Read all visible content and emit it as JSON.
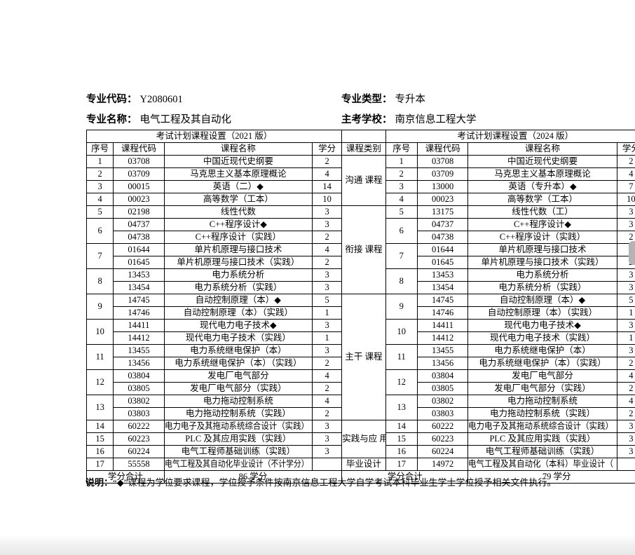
{
  "header": {
    "major_code": {
      "label": "专业代码：",
      "value": "Y2080601"
    },
    "major_type": {
      "label": "专业类型：",
      "value": "专升本"
    },
    "major_name": {
      "label": "专业名称：",
      "value": "电气工程及其自动化"
    },
    "host_school": {
      "label": "主考学校：",
      "value": "南京信息工程大学"
    }
  },
  "table": {
    "left_title": "考试计划课程设置（2021 版）",
    "right_title": "考试计划课程设置（2024 版）",
    "headers": {
      "seq": "序号",
      "code": "课程代码",
      "name": "课程名称",
      "credit": "学分",
      "category": "课程类别"
    },
    "categories": [
      {
        "label": "沟通\n课程",
        "rowspan": 4
      },
      {
        "label": "衔接\n课程",
        "rowspan": 7
      },
      {
        "label": "主干\n课程",
        "rowspan": 10
      },
      {
        "label": "实践与应\n用课程",
        "rowspan": 3
      },
      {
        "label": "毕业设计",
        "rowspan": 1
      }
    ],
    "rows": [
      {
        "s": "1",
        "sp": 1,
        "cat": 0,
        "cL": "03708",
        "nL": "中国近现代史纲要",
        "crL": "2",
        "cR": "03708",
        "nR": "中国近现代史纲要",
        "crR": "2"
      },
      {
        "s": "2",
        "sp": 1,
        "cL": "03709",
        "nL": "马克思主义基本原理概论",
        "crL": "4",
        "cR": "03709",
        "nR": "马克思主义基本原理概论",
        "crR": "4"
      },
      {
        "s": "3",
        "sp": 1,
        "cL": "00015",
        "nL": "英语（二）◆",
        "crL": "14",
        "cR": "13000",
        "nR": "英语（专升本）◆",
        "crR": "7"
      },
      {
        "s": "4",
        "sp": 1,
        "cL": "00023",
        "nL": "高等数学（工本）",
        "crL": "10",
        "cR": "00023",
        "nR": "高等数学（工本）",
        "crR": "10"
      },
      {
        "s": "5",
        "sp": 1,
        "cat": 1,
        "cL": "02198",
        "nL": "线性代数",
        "crL": "3",
        "cR": "13175",
        "nR": "线性代数（工）",
        "crR": "3"
      },
      {
        "s": "6",
        "sp": 2,
        "cL": "04737",
        "nL": "C++程序设计◆",
        "crL": "3",
        "cR": "04737",
        "nR": "C++程序设计◆",
        "crR": "3"
      },
      {
        "s": null,
        "cL": "04738",
        "nL": "C++程序设计（实践）",
        "crL": "2",
        "cR": "04738",
        "nR": "C++程序设计（实践）",
        "crR": "2"
      },
      {
        "s": "7",
        "sp": 2,
        "cL": "01644",
        "nL": "单片机原理与接口技术",
        "crL": "4",
        "cR": "01644",
        "nR": "单片机原理与接口技术",
        "crR": "4"
      },
      {
        "s": null,
        "cL": "01645",
        "nL": "单片机原理与接口技术（实践）",
        "crL": "2",
        "cR": "01645",
        "nR": "单片机原理与接口技术（实践）",
        "crR": "2"
      },
      {
        "s": "8",
        "sp": 2,
        "cL": "13453",
        "nL": "电力系统分析",
        "crL": "3",
        "cR": "13453",
        "nR": "电力系统分析",
        "crR": "3"
      },
      {
        "s": null,
        "cL": "13454",
        "nL": "电力系统分析（实践）",
        "crL": "3",
        "cR": "13454",
        "nR": "电力系统分析（实践）",
        "crR": "3"
      },
      {
        "s": "9",
        "sp": 2,
        "cat": 2,
        "cL": "14745",
        "nL": "自动控制原理（本）◆",
        "crL": "5",
        "cR": "14745",
        "nR": "自动控制原理（本）◆",
        "crR": "5"
      },
      {
        "s": null,
        "cL": "14746",
        "nL": "自动控制原理（本）（实践）",
        "crL": "1",
        "cR": "14746",
        "nR": "自动控制原理（本）（实践）",
        "crR": "1"
      },
      {
        "s": "10",
        "sp": 2,
        "cL": "14411",
        "nL": "现代电力电子技术◆",
        "crL": "3",
        "cR": "14411",
        "nR": "现代电力电子技术◆",
        "crR": "3"
      },
      {
        "s": null,
        "cL": "14412",
        "nL": "现代电力电子技术（实践）",
        "crL": "1",
        "cR": "14412",
        "nR": "现代电力电子技术（实践）",
        "crR": "1"
      },
      {
        "s": "11",
        "sp": 2,
        "cL": "13455",
        "nL": "电力系统继电保护（本）",
        "crL": "3",
        "cR": "13455",
        "nR": "电力系统继电保护（本）",
        "crR": "3"
      },
      {
        "s": null,
        "cL": "13456",
        "nL": "电力系统继电保护（本）（实践）",
        "crL": "2",
        "cR": "13456",
        "nR": "电力系统继电保护（本）（实践）",
        "crR": "2"
      },
      {
        "s": "12",
        "sp": 2,
        "cL": "03804",
        "nL": "发电厂电气部分",
        "crL": "4",
        "cR": "03804",
        "nR": "发电厂电气部分",
        "crR": "4"
      },
      {
        "s": null,
        "cL": "03805",
        "nL": "发电厂电气部分（实践）",
        "crL": "2",
        "cR": "03805",
        "nR": "发电厂电气部分（实践）",
        "crR": "2"
      },
      {
        "s": "13",
        "sp": 2,
        "cL": "03802",
        "nL": "电力拖动控制系统",
        "crL": "4",
        "cR": "03802",
        "nR": "电力拖动控制系统",
        "crR": "4"
      },
      {
        "s": null,
        "cL": "03803",
        "nL": "电力拖动控制系统（实践）",
        "crL": "2",
        "cR": "03803",
        "nR": "电力拖动控制系统（实践）",
        "crR": "2"
      },
      {
        "s": "14",
        "sp": 1,
        "cat": 3,
        "cL": "60222",
        "nL": "电力电子及其拖动系统综合设计（实践）",
        "crL": "3",
        "cR": "60222",
        "nR": "电力电子及其拖动系统综合设计（实践）",
        "crR": "3"
      },
      {
        "s": "15",
        "sp": 1,
        "cL": "60223",
        "nL": "PLC 及其应用实践（实践）",
        "crL": "3",
        "cR": "60223",
        "nR": "PLC 及其应用实践（实践）",
        "crR": "3"
      },
      {
        "s": "16",
        "sp": 1,
        "cL": "60224",
        "nL": "电气工程师基础训练（实践）",
        "crL": "3",
        "cR": "60224",
        "nR": "电气工程师基础训练（实践）",
        "crR": "3"
      },
      {
        "s": "17",
        "sp": 1,
        "cat": 4,
        "cL": "55558",
        "nL": "电气工程及其自动化毕业设计（不计学分）",
        "crL": "",
        "cR": "14972",
        "nR": "电气工程及其自动化（本科）毕业设计（",
        "crR": ""
      }
    ],
    "total": {
      "left_label": "学分合计",
      "left_value": "86 学分",
      "right_label": "学分合计",
      "right_value": "79 学分"
    }
  },
  "note": {
    "label": "说明：",
    "text": "“◆”课程为学位要求课程，学位授予条件按南京信息工程大学自学考试本科毕业生学士学位授予相关文件执行。"
  }
}
